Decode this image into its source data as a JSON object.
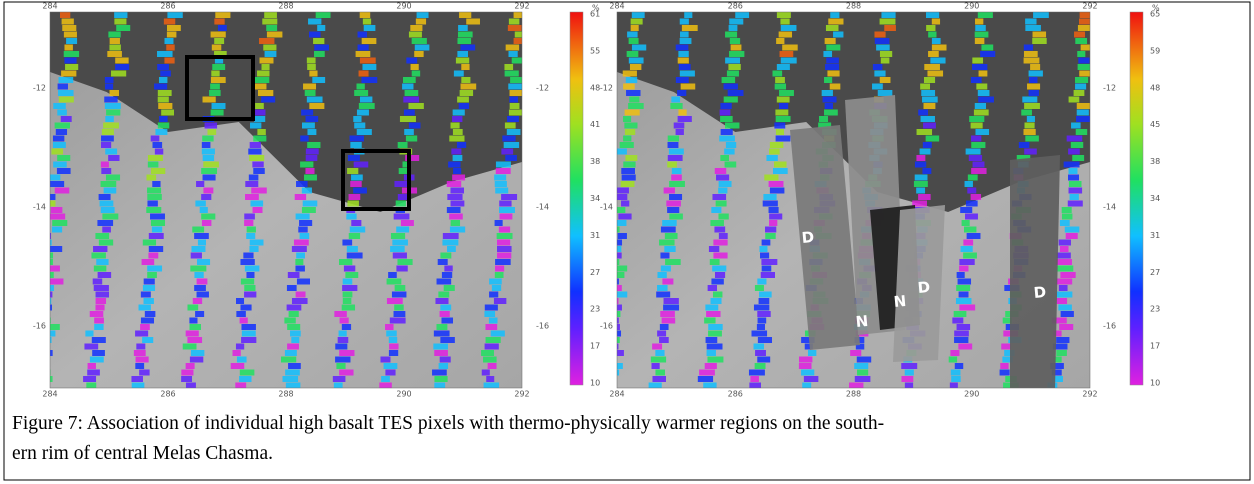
{
  "panels": [
    {
      "x_ticks": [
        "284",
        "286",
        "288",
        "290",
        "292"
      ],
      "y_ticks": [
        "-12",
        "-14",
        "-16"
      ],
      "colorbar": {
        "unit": "%",
        "ticks": [
          "61",
          "55",
          "48",
          "41",
          "38",
          "34",
          "31",
          "27",
          "23",
          "17",
          "10"
        ]
      },
      "labels": []
    },
    {
      "x_ticks": [
        "284",
        "286",
        "288",
        "290",
        "292"
      ],
      "y_ticks": [
        "-12",
        "-14",
        "-16"
      ],
      "colorbar": {
        "unit": "%",
        "ticks": [
          "65",
          "59",
          "48",
          "45",
          "38",
          "34",
          "31",
          "27",
          "23",
          "17",
          "10"
        ]
      },
      "labels": [
        "D",
        "N",
        "N",
        "D",
        "D"
      ]
    }
  ],
  "caption": {
    "lines": [
      "Figure 7: Association of individual high basalt TES pixels with thermo-physically warmer regions on the south-",
      "ern rim of central Melas Chasma."
    ]
  }
}
